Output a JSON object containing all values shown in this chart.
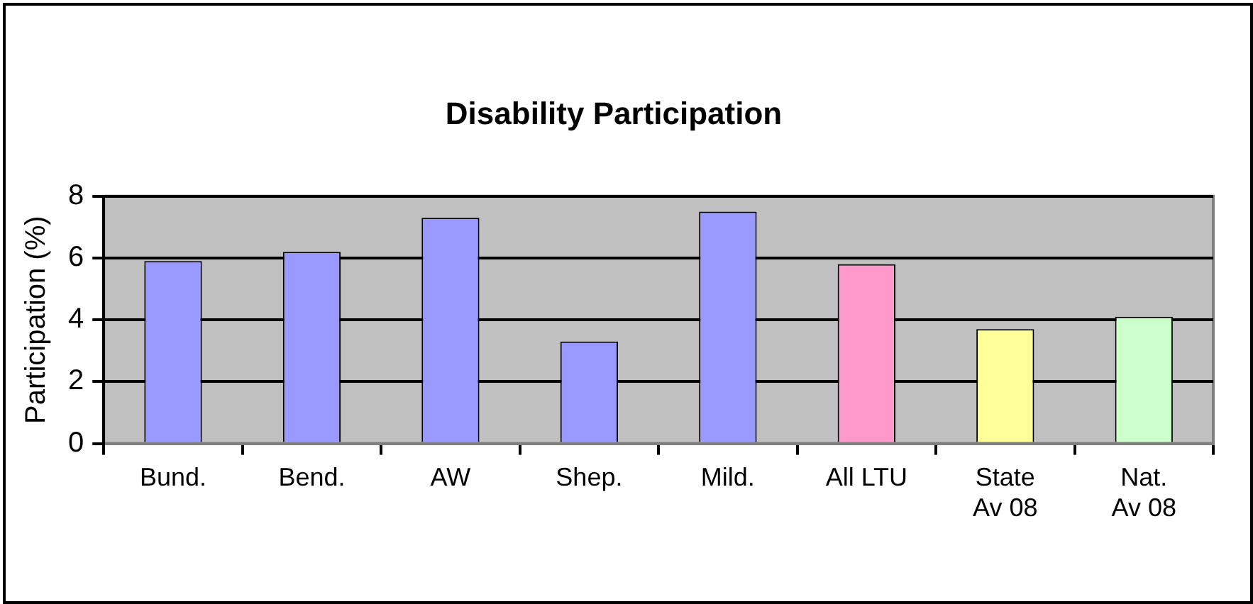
{
  "chart_data": {
    "type": "bar",
    "title": "Disability Participation",
    "ylabel": "Participation (%)",
    "categories": [
      "Bund.",
      "Bend.",
      "AW",
      "Shep.",
      "Mild.",
      "All LTU",
      "State\nAv 08",
      "Nat.\nAv 08"
    ],
    "values": [
      5.9,
      6.2,
      7.3,
      3.3,
      7.5,
      5.8,
      3.7,
      4.1
    ],
    "colors": [
      "#9999ff",
      "#9999ff",
      "#9999ff",
      "#9999ff",
      "#9999ff",
      "#ff99cc",
      "#ffff99",
      "#ccffcc"
    ],
    "ylim": [
      0,
      8
    ],
    "yticks": [
      0,
      2,
      4,
      6,
      8
    ],
    "grid": "y",
    "legend": false
  }
}
